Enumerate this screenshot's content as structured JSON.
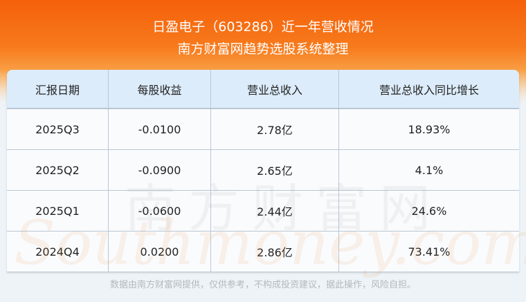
{
  "header": {
    "title": "日盈电子（603286）近一年营收情况",
    "subtitle": "南方财富网趋势选股系统整理"
  },
  "watermark": {
    "cn": "南方财富网",
    "en": "Southmoney.com"
  },
  "chart_data": {
    "type": "table",
    "columns": [
      "汇报日期",
      "每股收益",
      "营业总收入",
      "营业总收入同比增长"
    ],
    "rows": [
      [
        "2025Q3",
        "-0.0100",
        "2.78亿",
        "18.93%"
      ],
      [
        "2025Q2",
        "-0.0900",
        "2.65亿",
        "4.1%"
      ],
      [
        "2025Q1",
        "-0.0600",
        "2.44亿",
        "24.6%"
      ],
      [
        "2024Q4",
        "0.0200",
        "2.86亿",
        "73.41%"
      ]
    ]
  },
  "footer": {
    "disclaimer": "数据由南方财富网提供，仅供参考，不构成投资建议，据此操作，风险自担。"
  },
  "colors": {
    "header_orange": "#f5600a",
    "table_header": "#dcecfa"
  }
}
